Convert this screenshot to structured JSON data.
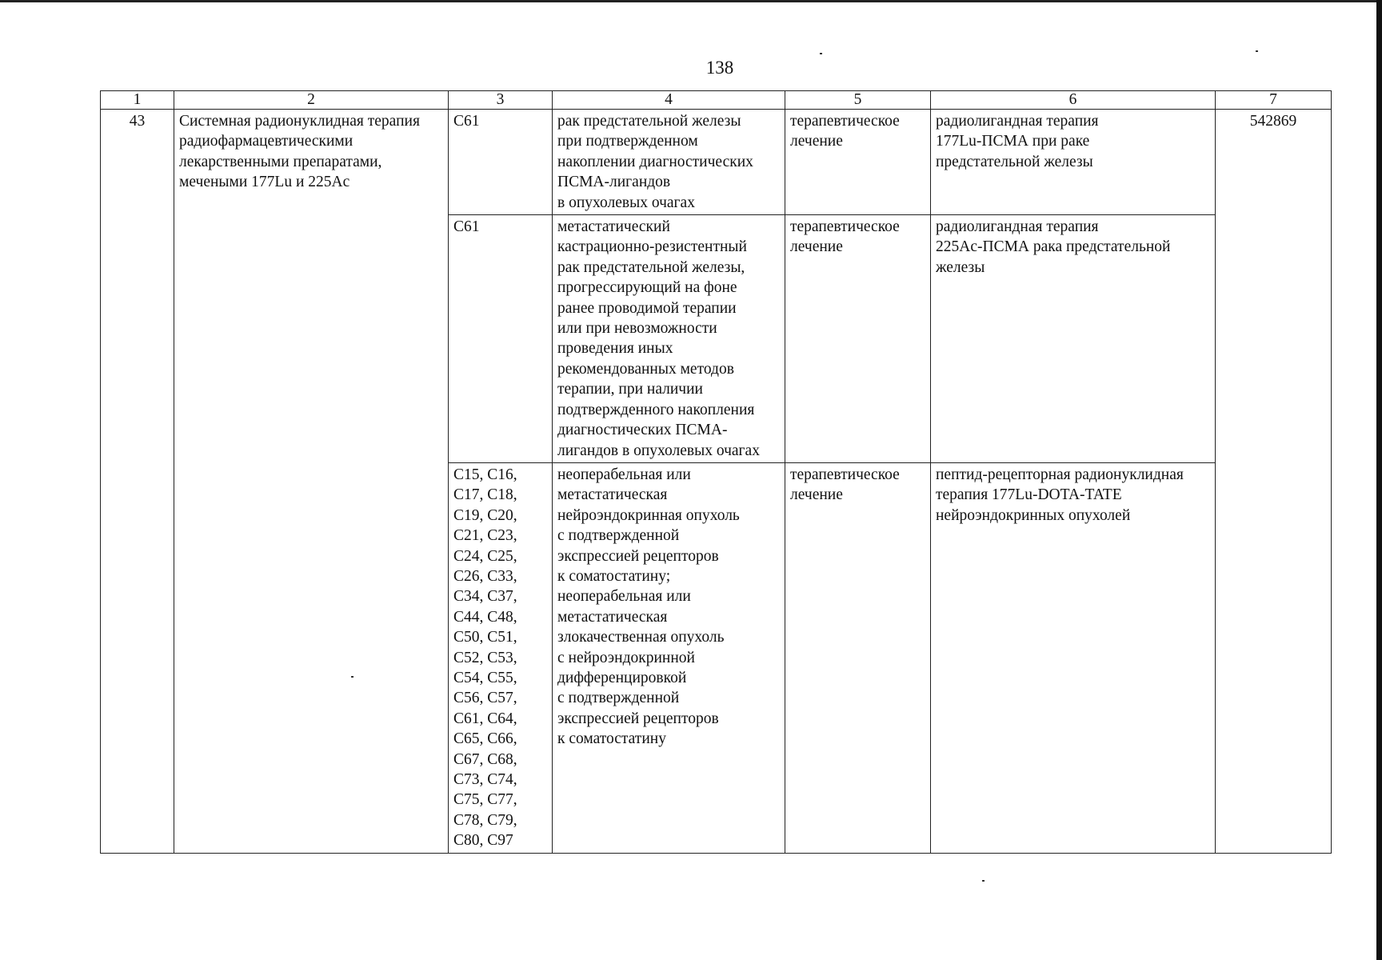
{
  "page_number": "138",
  "header": [
    "1",
    "2",
    "3",
    "4",
    "5",
    "6",
    "7"
  ],
  "row_number": "43",
  "service_name": [
    "Системная радионуклидная терапия",
    "радиофармацевтическими",
    "лекарственными препаратами,",
    "мечеными 177Lu и 225Ac"
  ],
  "code": "542869",
  "rows": [
    {
      "icd": [
        "C61"
      ],
      "condition": [
        "рак предстательной железы",
        "при подтвержденном",
        "накоплении диагностических",
        "ПСМА-лигандов",
        "в опухолевых очагах"
      ],
      "treatment_type": [
        "терапевтическое",
        "лечение"
      ],
      "method": [
        "радиолигандная терапия",
        "177Lu-ПСМА при раке",
        "предстательной железы"
      ]
    },
    {
      "icd": [
        "C61"
      ],
      "condition": [
        "метастатический",
        "кастрационно-резистентный",
        "рак предстательной железы,",
        "прогрессирующий на фоне",
        "ранее проводимой терапии",
        "или при невозможности",
        "проведения иных",
        "рекомендованных методов",
        "терапии, при наличии",
        "подтвержденного накопления",
        "диагностических ПСМА-",
        "лигандов в опухолевых очагах"
      ],
      "treatment_type": [
        "терапевтическое",
        "лечение"
      ],
      "method": [
        "радиолигандная терапия",
        "225Ac-ПСМА рака предстательной",
        "железы"
      ]
    },
    {
      "icd": [
        "C15, C16,",
        "C17, C18,",
        "C19, C20,",
        "C21, C23,",
        "C24, C25,",
        "C26, C33,",
        "C34, C37,",
        "C44, C48,",
        "C50, C51,",
        "C52, C53,",
        "C54, C55,",
        "C56, C57,",
        "C61, C64,",
        "C65, C66,",
        "C67, C68,",
        "C73, C74,",
        "C75, C77,",
        "C78, C79,",
        "C80, C97"
      ],
      "condition": [
        "неоперабельная или",
        "метастатическая",
        "нейроэндокринная опухоль",
        "с подтвержденной",
        "экспрессией рецепторов",
        "к соматостатину;",
        "неоперабельная или",
        "метастатическая",
        "злокачественная опухоль",
        "с нейроэндокринной",
        "дифференцировкой",
        "с подтвержденной",
        "экспрессией рецепторов",
        "к соматостатину"
      ],
      "treatment_type": [
        "терапевтическое",
        "лечение"
      ],
      "method": [
        "пептид-рецепторная радионуклидная",
        "терапия 177Lu-DOTA-TATE",
        "нейроэндокринных опухолей"
      ]
    }
  ]
}
